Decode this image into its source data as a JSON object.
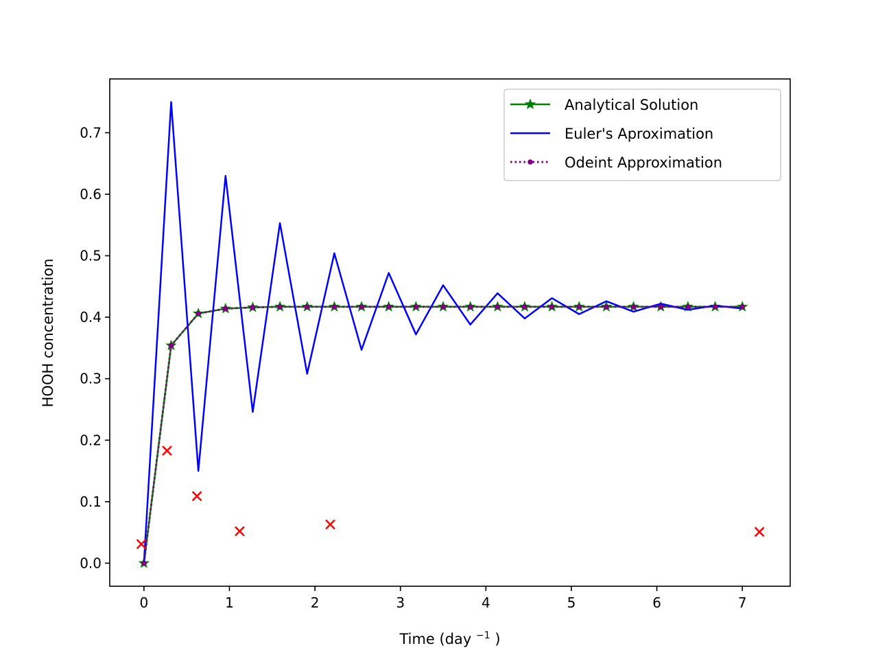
{
  "chart_data": {
    "type": "line",
    "title": "",
    "xlabel": "Time (day",
    "xlabel_sup": "−1",
    "xlabel_close": ")",
    "ylabel": "HOOH concentration",
    "xlim": [
      -0.4,
      7.56
    ],
    "ylim": [
      -0.0375,
      0.7875
    ],
    "xticks": [
      0,
      1,
      2,
      3,
      4,
      5,
      6,
      7
    ],
    "yticks": [
      0.0,
      0.1,
      0.2,
      0.3,
      0.4,
      0.5,
      0.6,
      0.7
    ],
    "ytick_labels": [
      "0.0",
      "0.1",
      "0.2",
      "0.3",
      "0.4",
      "0.5",
      "0.6",
      "0.7"
    ],
    "grid": false,
    "legend_position": "top-right",
    "x": [
      0,
      0.3182,
      0.6364,
      0.9545,
      1.2727,
      1.5909,
      1.9091,
      2.2273,
      2.5455,
      2.8636,
      3.1818,
      3.5,
      3.8182,
      4.1364,
      4.4545,
      4.7727,
      5.0909,
      5.4091,
      5.7273,
      6.0455,
      6.3636,
      6.6818,
      7.0
    ],
    "series": [
      {
        "name": "Analytical Solution",
        "color": "#008000",
        "style": "solid",
        "marker": "star",
        "values": [
          0.0,
          0.354,
          0.406,
          0.414,
          0.416,
          0.417,
          0.417,
          0.417,
          0.417,
          0.417,
          0.417,
          0.417,
          0.417,
          0.417,
          0.417,
          0.417,
          0.417,
          0.417,
          0.417,
          0.417,
          0.417,
          0.417,
          0.417
        ]
      },
      {
        "name": "Euler's Aproximation",
        "color": "#0000ff",
        "style": "solid",
        "marker": "none",
        "values": [
          0.0,
          0.75,
          0.15,
          0.63,
          0.246,
          0.553,
          0.308,
          0.504,
          0.347,
          0.472,
          0.372,
          0.452,
          0.388,
          0.439,
          0.398,
          0.431,
          0.405,
          0.426,
          0.409,
          0.422,
          0.412,
          0.419,
          0.414
        ]
      },
      {
        "name": "Odeint Approximation",
        "color": "#800080",
        "style": "dotted",
        "marker": "dot",
        "values": [
          0.0,
          0.354,
          0.406,
          0.414,
          0.416,
          0.417,
          0.417,
          0.417,
          0.417,
          0.417,
          0.417,
          0.417,
          0.417,
          0.417,
          0.417,
          0.417,
          0.417,
          0.417,
          0.417,
          0.417,
          0.417,
          0.417,
          0.417
        ]
      }
    ],
    "scatter": {
      "color": "#ff0000",
      "marker": "x",
      "points": [
        {
          "x": -0.03,
          "y": 0.031
        },
        {
          "x": 0.27,
          "y": 0.183
        },
        {
          "x": 0.62,
          "y": 0.109
        },
        {
          "x": 1.12,
          "y": 0.052
        },
        {
          "x": 2.18,
          "y": 0.063
        },
        {
          "x": 7.2,
          "y": 0.051
        }
      ]
    }
  }
}
